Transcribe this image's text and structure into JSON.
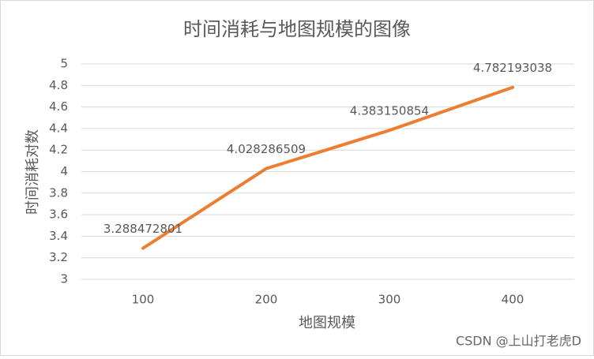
{
  "chart_data": {
    "type": "line",
    "title": "时间消耗与地图规模的图像",
    "x_label": "地图规模",
    "y_label": "时间消耗对数",
    "categories": [
      "100",
      "200",
      "300",
      "400"
    ],
    "series": [
      {
        "name": "时间消耗对数",
        "color": "#ed7d31",
        "values": [
          3.288472801,
          4.028286509,
          4.383150854,
          4.782193038
        ]
      }
    ],
    "ylim": [
      3,
      5
    ],
    "yticks": [
      3,
      3.2,
      3.4,
      3.6,
      3.8,
      4,
      4.2,
      4.4,
      4.6,
      4.8,
      5
    ],
    "grid": true,
    "watermark": "CSDN @上山打老虎D"
  }
}
